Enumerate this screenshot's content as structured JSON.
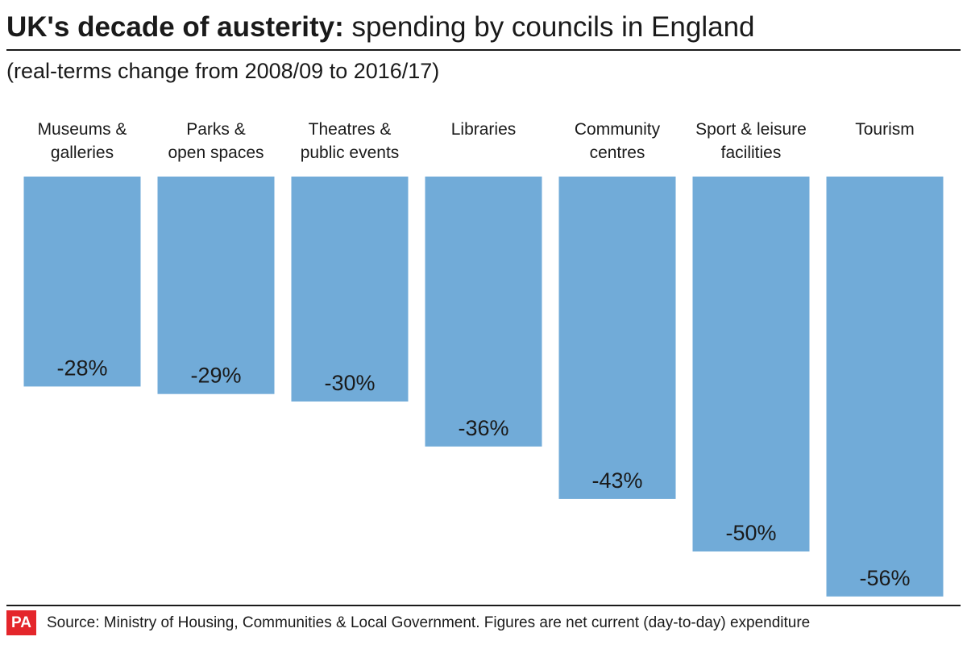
{
  "header": {
    "title_bold": "UK's decade of austerity:",
    "title_rest": " spending by councils in England",
    "subtitle": "(real-terms change from 2008/09 to 2016/17)"
  },
  "chart_data": {
    "type": "bar",
    "title": "UK's decade of austerity: spending by councils in England",
    "subtitle": "(real-terms change from 2008/09 to 2016/17)",
    "categories": [
      [
        "Museums &",
        "galleries"
      ],
      [
        "Parks &",
        "open spaces"
      ],
      [
        "Theatres &",
        "public events"
      ],
      [
        "Libraries"
      ],
      [
        "Community",
        "centres"
      ],
      [
        "Sport & leisure",
        "facilities"
      ],
      [
        "Tourism"
      ]
    ],
    "values": [
      -28,
      -29,
      -30,
      -36,
      -43,
      -50,
      -56
    ],
    "value_labels": [
      "-28%",
      "-29%",
      "-30%",
      "-36%",
      "-43%",
      "-50%",
      "-56%"
    ],
    "unit": "%",
    "orientation": "bars hang downward from a common baseline",
    "bar_color": "#71abd8",
    "grid": false,
    "legend": "none"
  },
  "footer": {
    "logo_text": "PA",
    "logo_color": "#e4262b",
    "source": "Source: Ministry of Housing, Communities & Local Government. Figures are net current (day-to-day) expenditure"
  }
}
